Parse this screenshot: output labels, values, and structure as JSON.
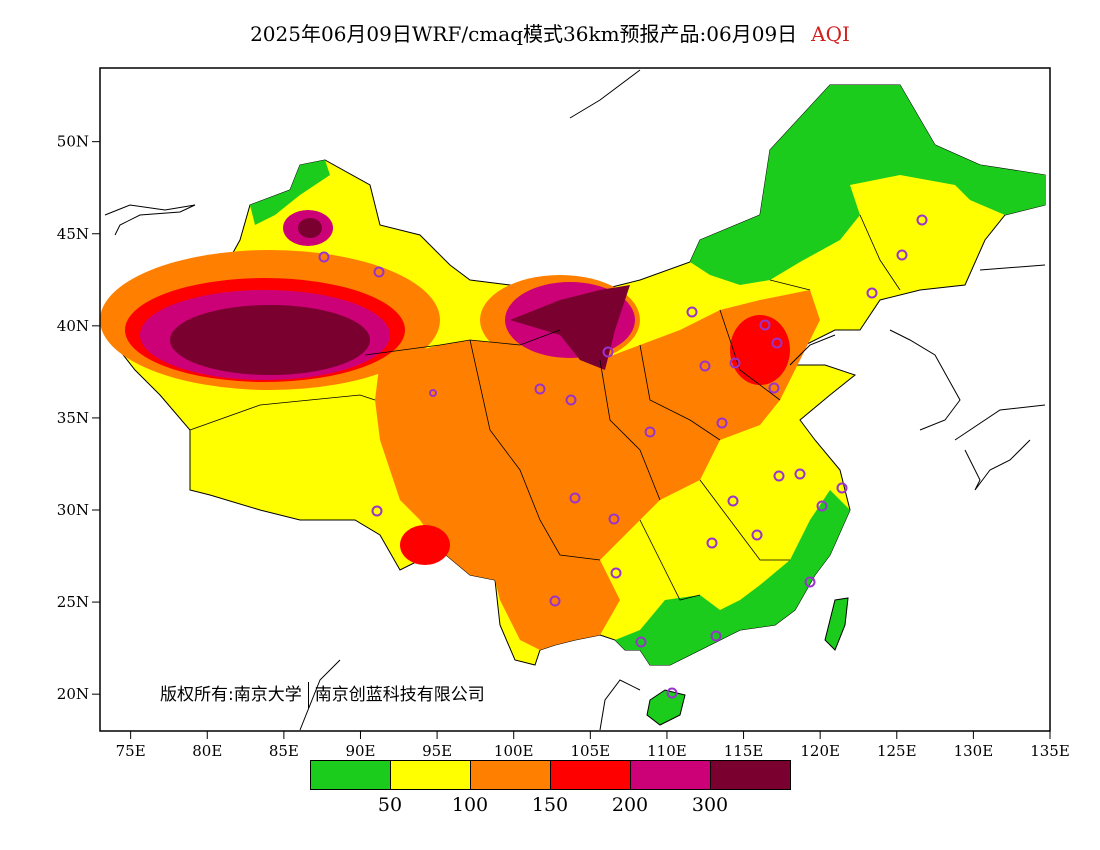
{
  "title": {
    "main": "2025年06月09日WRF/cmaq模式36km预报产品:06月09日",
    "variable": "AQI"
  },
  "axes": {
    "y_ticks": [
      "50N",
      "45N",
      "40N",
      "35N",
      "30N",
      "25N",
      "20N"
    ],
    "x_ticks": [
      "75E",
      "80E",
      "85E",
      "90E",
      "95E",
      "100E",
      "105E",
      "110E",
      "115E",
      "120E",
      "125E",
      "130E",
      "135E"
    ]
  },
  "map_extent": {
    "lon_min": 73,
    "lon_max": 135,
    "lat_min": 18,
    "lat_max": 54
  },
  "legend": {
    "colors": [
      "#1ccc1c",
      "#ffff00",
      "#ff8000",
      "#ff0000",
      "#cc0077",
      "#7a0030"
    ],
    "labels": [
      "50",
      "100",
      "150",
      "200",
      "300"
    ]
  },
  "copyright": {
    "prefix": "版权所有:",
    "org1": "南京大学",
    "org2": "南京创蓝科技有限公司"
  },
  "colors": {
    "marker": "#9933cc",
    "title_variable": "#d02020"
  }
}
